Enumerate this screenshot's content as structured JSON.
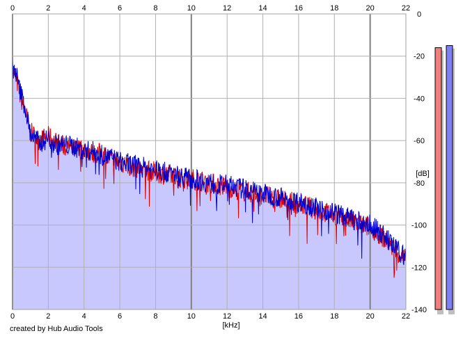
{
  "chart_data": {
    "type": "line",
    "title": "",
    "xlabel": "[kHz]",
    "ylabel": "[dB]",
    "xlim": [
      0,
      22
    ],
    "ylim": [
      -140,
      0
    ],
    "x_ticks": [
      "0",
      "2",
      "4",
      "6",
      "8",
      "10",
      "12",
      "14",
      "16",
      "18",
      "20",
      "22"
    ],
    "y_ticks": [
      "0",
      "-20",
      "-40",
      "-60",
      "-80",
      "-100",
      "-120",
      "-140"
    ],
    "grid": true,
    "fill_color": "#c8c8ff",
    "series": [
      {
        "color": "#e00000",
        "x": [
          0,
          0.2,
          0.4,
          0.7,
          1.0,
          1.5,
          2.0,
          2.5,
          3.0,
          3.5,
          4.0,
          4.5,
          5.0,
          5.5,
          6.0,
          6.5,
          7.0,
          7.5,
          8.0,
          8.5,
          9.0,
          9.5,
          10.0,
          10.5,
          11.0,
          11.5,
          12.0,
          12.5,
          13.0,
          13.5,
          14.0,
          14.5,
          15.0,
          15.5,
          16.0,
          16.5,
          17.0,
          17.5,
          18.0,
          18.5,
          19.0,
          19.5,
          20.0,
          20.5,
          21.0,
          21.5,
          22.0
        ],
        "values": [
          -26,
          -30,
          -38,
          -46,
          -56,
          -60,
          -58,
          -61,
          -63,
          -64,
          -64,
          -66,
          -66,
          -69,
          -70,
          -72,
          -73,
          -74,
          -75,
          -76,
          -77,
          -78,
          -78,
          -79,
          -80,
          -81,
          -82,
          -83,
          -84,
          -85,
          -86,
          -87,
          -88,
          -89,
          -90,
          -91,
          -93,
          -94,
          -95,
          -97,
          -98,
          -100,
          -101,
          -104,
          -108,
          -113,
          -117
        ]
      },
      {
        "color": "#0000d0",
        "x": [
          0,
          0.2,
          0.4,
          0.7,
          1.0,
          1.5,
          2.0,
          2.5,
          3.0,
          3.5,
          4.0,
          4.5,
          5.0,
          5.5,
          6.0,
          6.5,
          7.0,
          7.5,
          8.0,
          8.5,
          9.0,
          9.5,
          10.0,
          10.5,
          11.0,
          11.5,
          12.0,
          12.5,
          13.0,
          13.5,
          14.0,
          14.5,
          15.0,
          15.5,
          16.0,
          16.5,
          17.0,
          17.5,
          18.0,
          18.5,
          19.0,
          19.5,
          20.0,
          20.5,
          21.0,
          21.5,
          22.0
        ],
        "values": [
          -25,
          -28,
          -36,
          -44,
          -57,
          -61,
          -59,
          -62,
          -62,
          -63,
          -65,
          -65,
          -67,
          -68,
          -70,
          -71,
          -72,
          -73,
          -74,
          -75,
          -76,
          -77,
          -78,
          -79,
          -80,
          -81,
          -81,
          -82,
          -83,
          -84,
          -85,
          -86,
          -87,
          -88,
          -89,
          -90,
          -92,
          -93,
          -94,
          -96,
          -97,
          -99,
          -100,
          -103,
          -107,
          -112,
          -115
        ]
      }
    ],
    "level_meters": [
      {
        "color": "#f08080",
        "value": -16
      },
      {
        "color": "#8080f0",
        "value": -15
      }
    ]
  },
  "credit": "created by Hub Audio Tools"
}
